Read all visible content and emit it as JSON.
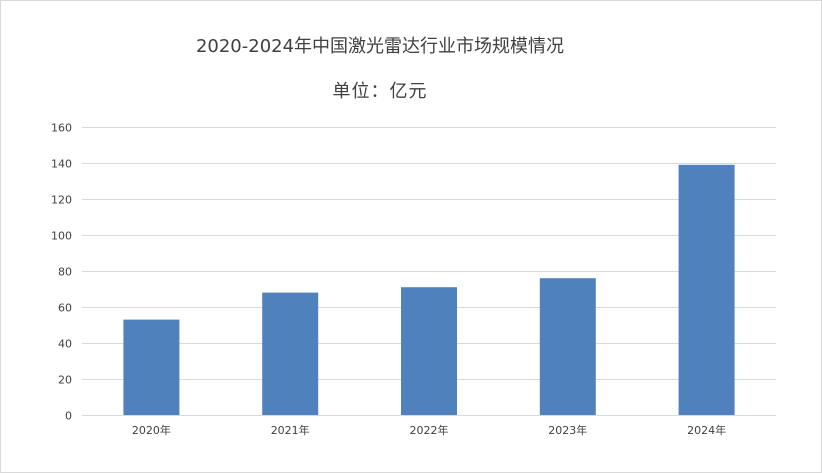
{
  "chart_data": {
    "type": "bar",
    "title": "2020-2024年中国激光雷达行业市场规模情况",
    "subtitle": "单位：亿元",
    "categories": [
      "2020年",
      "2021年",
      "2022年",
      "2023年",
      "2024年"
    ],
    "values": [
      53,
      68,
      71,
      76,
      139
    ],
    "xlabel": "",
    "ylabel": "",
    "ylim": [
      0,
      160
    ],
    "yticks": [
      0,
      20,
      40,
      60,
      80,
      100,
      120,
      140,
      160
    ],
    "grid": true,
    "legend": "none",
    "bar_color": "#4f81bd"
  }
}
